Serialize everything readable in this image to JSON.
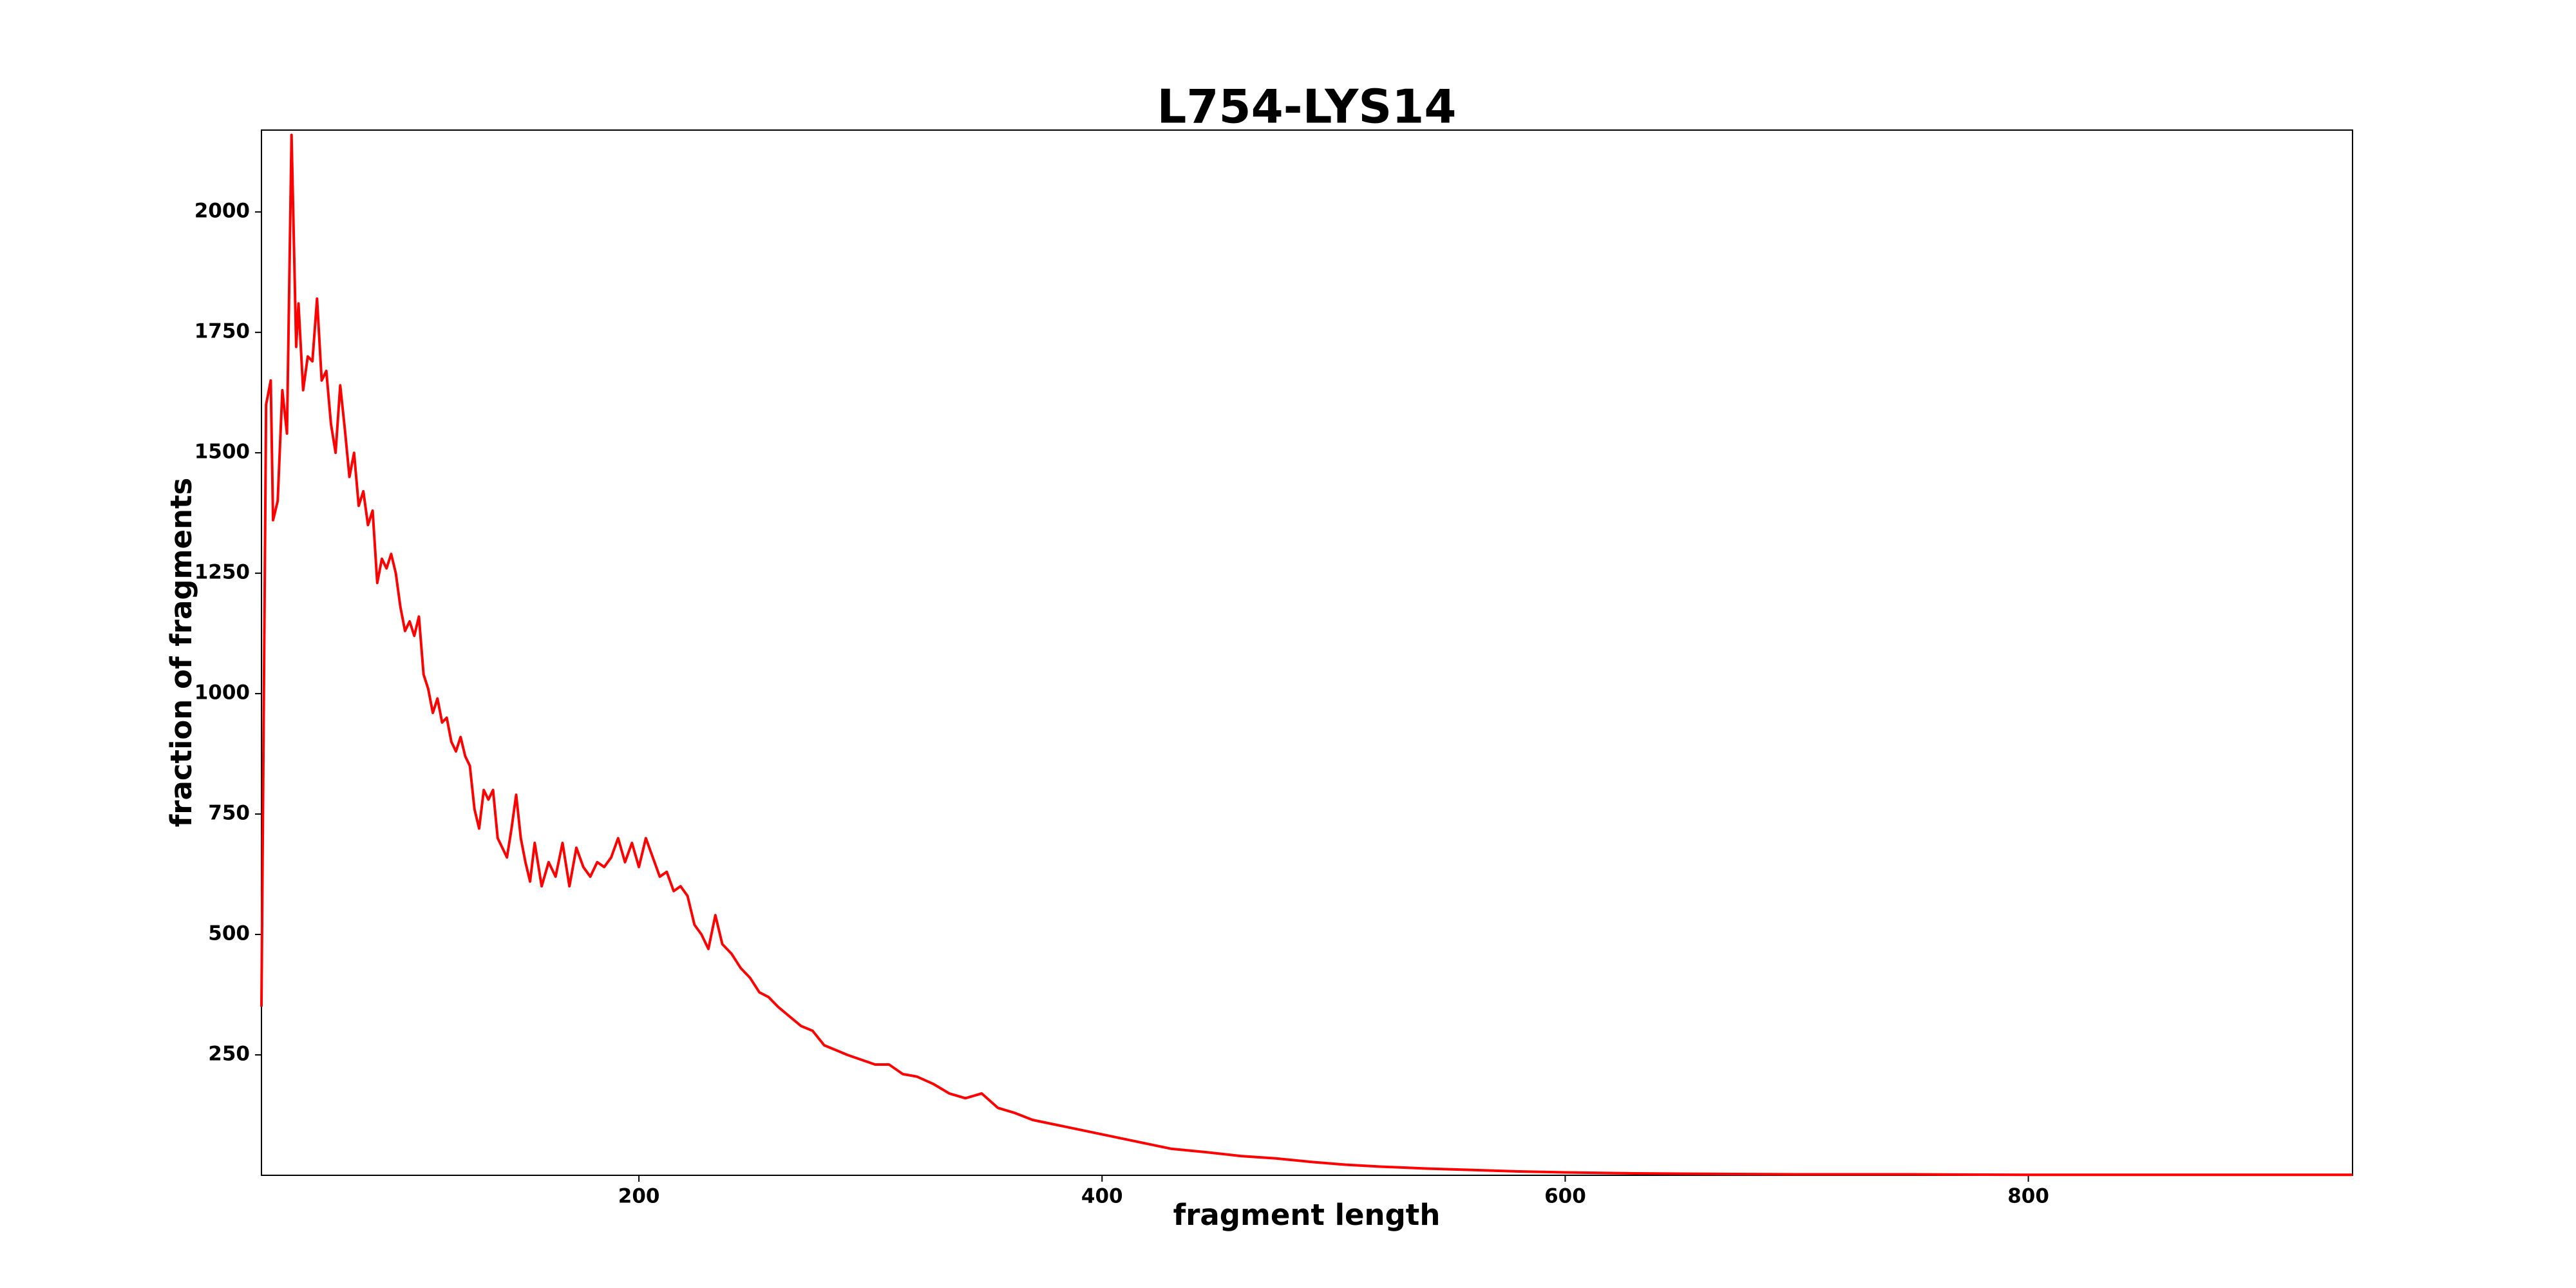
{
  "chart_data": {
    "type": "line",
    "title": "L754-LYS14",
    "x_label": "fragment length",
    "y_label": "fraction of fragments",
    "color": "#ff0000",
    "x": [
      37,
      39,
      41,
      42,
      44,
      46,
      48,
      50,
      52,
      53,
      55,
      57,
      59,
      61,
      63,
      65,
      67,
      69,
      71,
      73,
      75,
      77,
      79,
      81,
      83,
      85,
      87,
      89,
      91,
      93,
      95,
      97,
      99,
      101,
      103,
      105,
      107,
      109,
      111,
      113,
      115,
      117,
      119,
      121,
      123,
      125,
      127,
      129,
      131,
      133,
      135,
      137,
      139,
      141,
      143,
      145,
      147,
      149,
      151,
      153,
      155,
      158,
      161,
      164,
      167,
      170,
      173,
      176,
      179,
      182,
      185,
      188,
      191,
      194,
      197,
      200,
      203,
      206,
      209,
      212,
      215,
      218,
      221,
      224,
      227,
      230,
      233,
      236,
      240,
      244,
      248,
      252,
      256,
      260,
      265,
      270,
      275,
      280,
      285,
      290,
      296,
      302,
      308,
      314,
      320,
      327,
      334,
      341,
      348,
      355,
      362,
      370,
      380,
      390,
      400,
      410,
      420,
      430,
      445,
      460,
      475,
      490,
      505,
      520,
      540,
      560,
      580,
      600,
      630,
      660,
      700,
      750,
      800,
      850,
      900,
      940
    ],
    "values": [
      350,
      1600,
      1650,
      1360,
      1400,
      1630,
      1540,
      2160,
      1720,
      1810,
      1630,
      1700,
      1690,
      1820,
      1650,
      1670,
      1560,
      1500,
      1640,
      1550,
      1450,
      1500,
      1390,
      1420,
      1350,
      1380,
      1230,
      1280,
      1260,
      1290,
      1250,
      1180,
      1130,
      1150,
      1120,
      1160,
      1040,
      1010,
      960,
      990,
      940,
      950,
      900,
      880,
      910,
      870,
      850,
      760,
      720,
      800,
      780,
      800,
      700,
      680,
      660,
      720,
      790,
      700,
      650,
      610,
      690,
      600,
      650,
      620,
      690,
      600,
      680,
      640,
      620,
      650,
      640,
      660,
      700,
      650,
      690,
      640,
      700,
      660,
      620,
      630,
      590,
      600,
      580,
      520,
      500,
      470,
      540,
      480,
      460,
      430,
      410,
      380,
      370,
      350,
      330,
      310,
      300,
      270,
      260,
      250,
      240,
      230,
      230,
      210,
      205,
      190,
      170,
      160,
      170,
      140,
      130,
      115,
      105,
      95,
      85,
      75,
      65,
      55,
      48,
      40,
      35,
      28,
      22,
      18,
      14,
      11,
      8,
      6,
      4,
      3,
      2,
      2,
      1,
      1,
      1,
      1
    ],
    "xlim": [
      37,
      940
    ],
    "ylim": [
      0,
      2170
    ],
    "xticks": [
      200,
      400,
      600,
      800
    ],
    "yticks": [
      250,
      500,
      750,
      1000,
      1250,
      1500,
      1750,
      2000
    ]
  }
}
